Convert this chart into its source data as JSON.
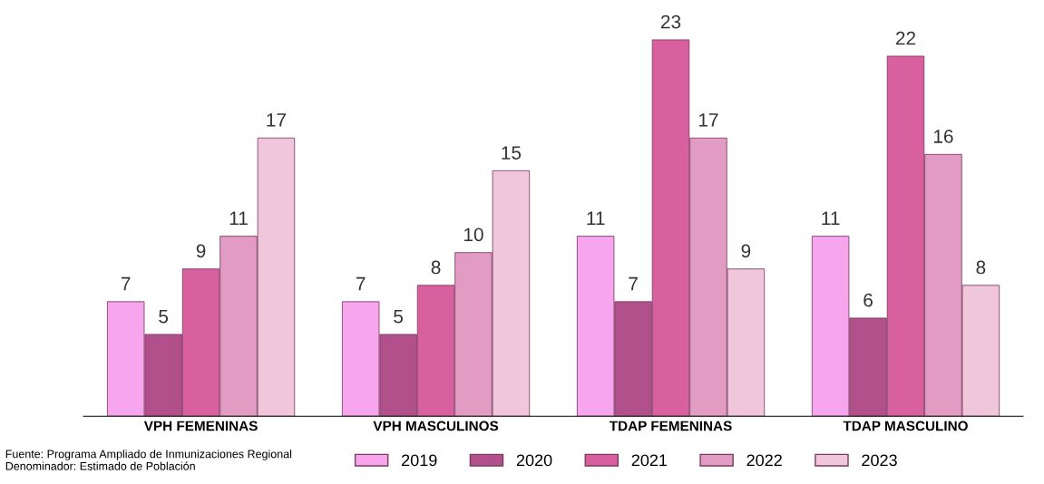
{
  "chart_data": {
    "type": "bar",
    "categories": [
      "VPH FEMENINAS",
      "VPH MASCULINOS",
      "TDAP FEMENINAS",
      "TDAP MASCULINO"
    ],
    "series": [
      {
        "name": "2019",
        "color": "#f7a6ee",
        "values": [
          7,
          7,
          11,
          11
        ]
      },
      {
        "name": "2020",
        "color": "#b2508c",
        "values": [
          5,
          5,
          7,
          6
        ]
      },
      {
        "name": "2021",
        "color": "#d8609f",
        "values": [
          9,
          8,
          23,
          22
        ]
      },
      {
        "name": "2022",
        "color": "#e29cc4",
        "values": [
          11,
          10,
          17,
          16
        ]
      },
      {
        "name": "2023",
        "color": "#f0c6da",
        "values": [
          17,
          15,
          9,
          8
        ]
      }
    ],
    "data_labels": true,
    "grid": false,
    "legend": "bottom",
    "annotations": [
      "Fuente: Programa Ampliado de Inmunizaciones Regional",
      "Denominador: Estimado de Población"
    ]
  }
}
